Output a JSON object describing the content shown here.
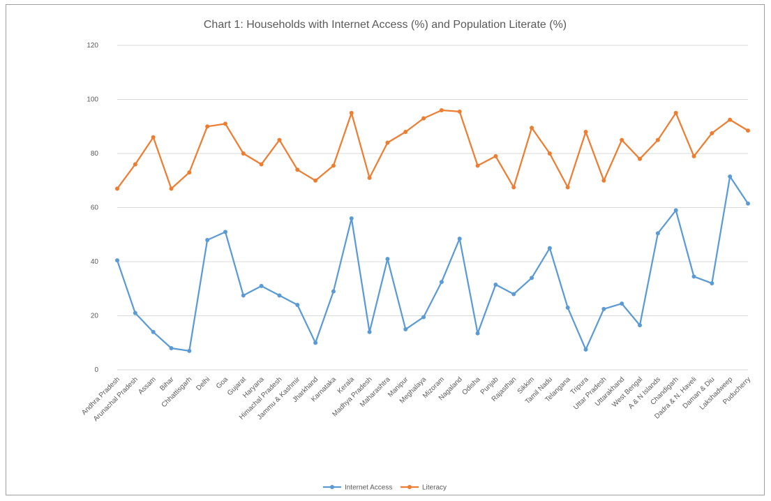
{
  "chart_data": {
    "type": "line",
    "title": "Chart 1: Households with Internet Access (%) and Population Literate (%)",
    "xlabel": "",
    "ylabel": "",
    "ylim": [
      0,
      120
    ],
    "yticks": [
      0,
      20,
      40,
      60,
      80,
      100,
      120
    ],
    "grid": true,
    "legend_position": "bottom",
    "categories": [
      "Andhra Pradesh",
      "Arunachal Pradesh",
      "Assam",
      "Bihar",
      "Chhattisgarh",
      "Delhi",
      "Goa",
      "Gujarat",
      "Haryana",
      "Himachal Pradesh",
      "Jammu & Kashmir",
      "Jharkhand",
      "Karnataka",
      "Kerala",
      "Madhya Pradesh",
      "Maharashtra",
      "Manipur",
      "Meghalaya",
      "Mizoram",
      "Nagaland",
      "Odisha",
      "Punjab",
      "Rajasthan",
      "Sikkim",
      "Tamil Nadu",
      "Telangana",
      "Tripura",
      "Uttar Pradesh",
      "Uttarakhand",
      "West Bengal",
      "A & N Islands",
      "Chandigarh",
      "Dadra & N. Haveli",
      "Daman & Diu",
      "Lakshadweep",
      "Puducherry"
    ],
    "series": [
      {
        "name": "Internet Access",
        "color": "#5b9bd5",
        "values": [
          40.5,
          21,
          14,
          8,
          7,
          48,
          51,
          27.5,
          31,
          27.5,
          24,
          10,
          29,
          56,
          14,
          41,
          15,
          19.5,
          32.5,
          48.5,
          13.5,
          31.5,
          28,
          34,
          45,
          23,
          7.5,
          22.5,
          24.5,
          16.5,
          50.5,
          59,
          34.5,
          32,
          71.5,
          61.5
        ]
      },
      {
        "name": "Literacy",
        "color": "#ed7d31",
        "values": [
          67,
          76,
          86,
          67,
          73,
          90,
          91,
          80,
          76,
          85,
          74,
          70,
          75.5,
          95,
          71,
          84,
          88,
          93,
          96,
          95.5,
          75.5,
          79,
          67.5,
          89.5,
          80,
          67.5,
          88,
          70,
          85,
          78,
          85,
          95,
          79,
          87.5,
          92.5,
          88.5
        ]
      }
    ]
  }
}
